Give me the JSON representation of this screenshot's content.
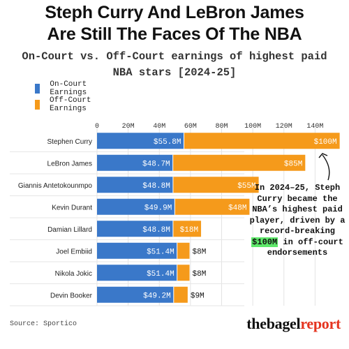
{
  "title_line1": "Steph Curry And LeBron James",
  "title_line2": "Are Still The Faces Of The NBA",
  "subtitle_line1": "On-Court vs. Off-Court earnings of highest paid",
  "subtitle_line2": "NBA stars [2024-25]",
  "colors": {
    "on_court": "#3a78c9",
    "off_court": "#f59a1b",
    "highlight": "#5ee86a",
    "brand_accent": "#e5341f"
  },
  "chart_data": {
    "type": "bar",
    "orientation": "horizontal",
    "stacked": true,
    "title": "Steph Curry And LeBron James Are Still The Faces Of The NBA",
    "subtitle": "On-Court vs. Off-Court earnings of highest paid NBA stars [2024-25]",
    "categories": [
      "Stephen Curry",
      "LeBron James",
      "Giannis Antetokounmpo",
      "Kevin Durant",
      "Damian Lillard",
      "Joel Embiid",
      "Nikola Jokic",
      "Devin Booker"
    ],
    "series": [
      {
        "name": "On-Court Earnings",
        "values": [
          55.8,
          48.7,
          48.8,
          49.9,
          48.8,
          51.4,
          51.4,
          49.2
        ],
        "labels": [
          "$55.8M",
          "$48.7M",
          "$48.8M",
          "$49.9M",
          "$48.8M",
          "$51.4M",
          "$51.4M",
          "$49.2M"
        ]
      },
      {
        "name": "Off-Court Earnings",
        "values": [
          100,
          85,
          55,
          48,
          18,
          8,
          8,
          9
        ],
        "labels": [
          "$100M",
          "$85M",
          "$55M",
          "$48M",
          "$18M",
          "$8M",
          "$8M",
          "$9M"
        ]
      }
    ],
    "xlim": [
      0,
      160
    ],
    "xticks": [
      0,
      20,
      40,
      60,
      80,
      100,
      120,
      140
    ],
    "xtick_labels": [
      "0",
      "20M",
      "40M",
      "60M",
      "80M",
      "100M",
      "120M",
      "140M"
    ],
    "xlabel": "",
    "ylabel": "",
    "legend_position": "top-left",
    "grid": true
  },
  "annotation": {
    "before": "In 2024–25, Steph Curry became the NBA’s highest paid player, driven by a record-breaking ",
    "highlight": "$100M",
    "after": " in off-court endorsements"
  },
  "source": "Source: Sportico",
  "brand": {
    "part1": "thebagel",
    "part2": "report"
  }
}
